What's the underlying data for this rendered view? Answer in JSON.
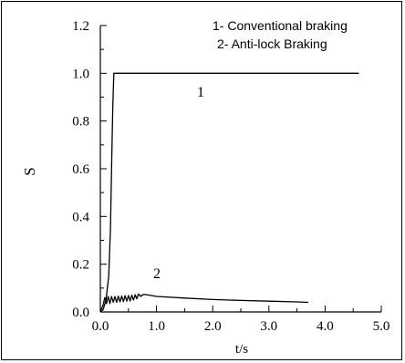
{
  "chart_data": {
    "type": "line",
    "title": "",
    "xlabel": "t/s",
    "ylabel": "S",
    "xlim": [
      0.0,
      5.0
    ],
    "ylim": [
      0.0,
      1.2
    ],
    "xticks": [
      "0.0",
      "1.0",
      "2.0",
      "3.0",
      "4.0",
      "5.0"
    ],
    "yticks": [
      "0.0",
      "0.2",
      "0.4",
      "0.6",
      "0.8",
      "1.0",
      "1.2"
    ],
    "grid": false,
    "legend_position": "top-right",
    "legend": [
      "1- Conventional braking",
      "2- Anti-lock Braking"
    ],
    "series": [
      {
        "label": "1",
        "color": "#000000",
        "x": [
          0.0,
          0.05,
          0.1,
          0.15,
          0.18,
          0.2,
          0.22,
          0.24,
          1.0,
          2.0,
          3.0,
          4.0,
          4.6
        ],
        "y": [
          0.0,
          0.01,
          0.05,
          0.15,
          0.35,
          0.6,
          0.85,
          1.0,
          1.0,
          1.0,
          1.0,
          1.0,
          1.0
        ]
      },
      {
        "label": "2",
        "color": "#000000",
        "x": [
          0.0,
          0.05,
          0.08,
          0.11,
          0.14,
          0.17,
          0.2,
          0.23,
          0.26,
          0.29,
          0.32,
          0.35,
          0.38,
          0.41,
          0.44,
          0.47,
          0.5,
          0.53,
          0.56,
          0.59,
          0.62,
          0.65,
          0.68,
          0.72,
          0.75,
          0.8,
          1.0,
          1.5,
          2.0,
          2.5,
          3.0,
          3.5,
          3.7
        ],
        "y": [
          0.0,
          0.03,
          0.06,
          0.035,
          0.065,
          0.035,
          0.065,
          0.04,
          0.065,
          0.04,
          0.066,
          0.042,
          0.067,
          0.043,
          0.068,
          0.045,
          0.069,
          0.046,
          0.07,
          0.05,
          0.072,
          0.055,
          0.075,
          0.065,
          0.072,
          0.073,
          0.065,
          0.058,
          0.052,
          0.048,
          0.045,
          0.042,
          0.04
        ]
      }
    ]
  }
}
